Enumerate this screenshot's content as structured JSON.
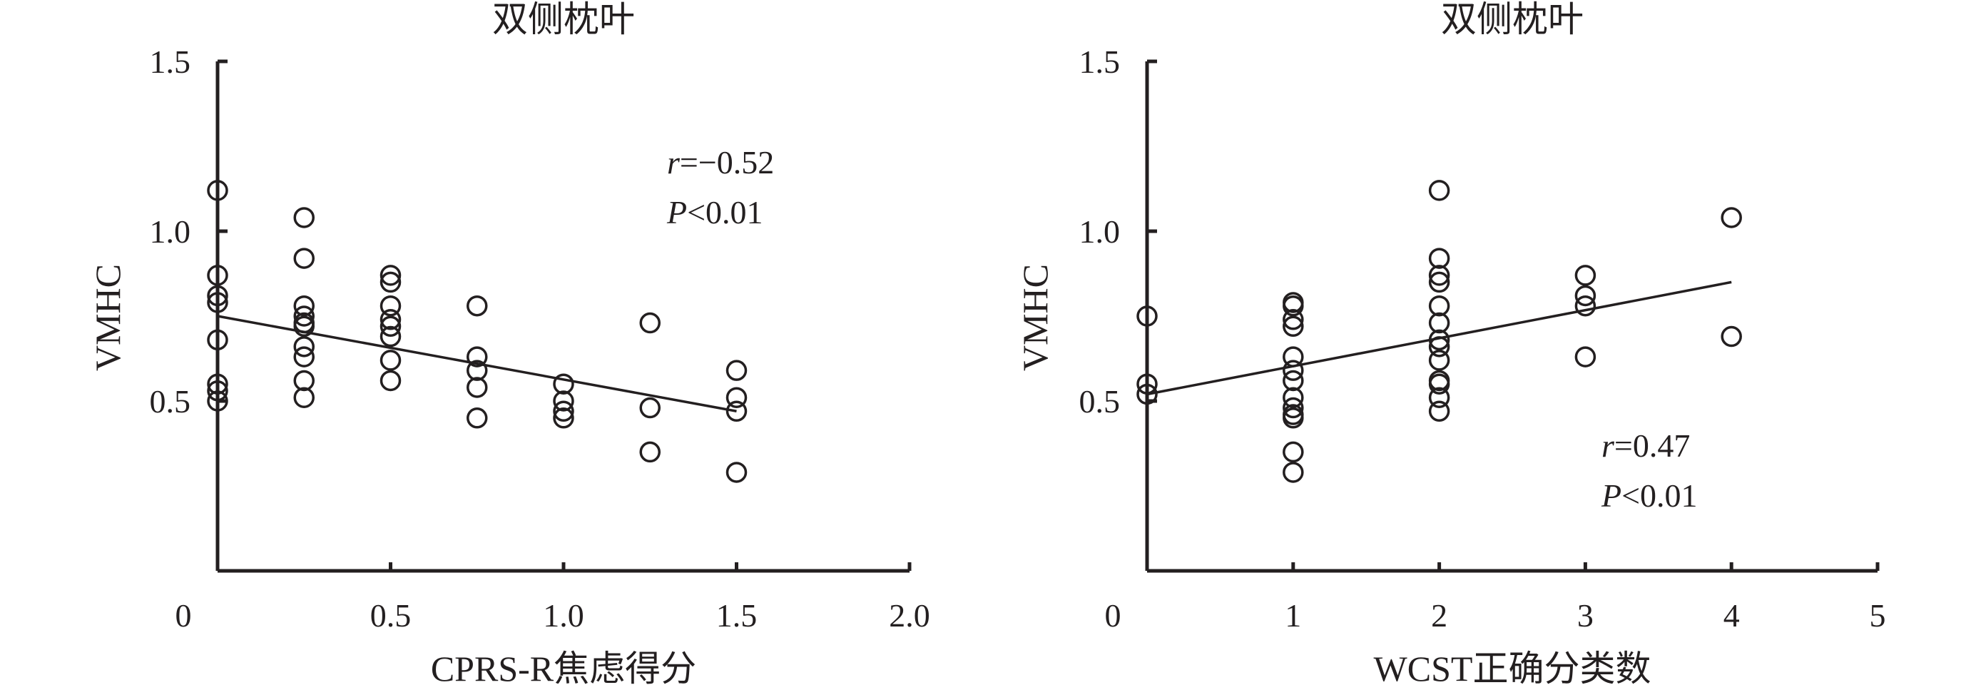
{
  "chart_data": [
    {
      "type": "scatter",
      "title": "双侧枕叶",
      "xlabel": "CPRS-R焦虑得分",
      "ylabel": "VMHC",
      "xlim": [
        0,
        2.0
      ],
      "ylim": [
        0,
        1.5
      ],
      "x_ticks": [
        "0",
        "0.5",
        "1.0",
        "1.5",
        "2.0"
      ],
      "y_ticks": [
        "0.5",
        "1.0",
        "1.5"
      ],
      "annotation": {
        "r_symbol": "r",
        "r_value": "=−0.52",
        "p_symbol": "P",
        "p_value": "<0.01"
      },
      "annotation_position": "top-right",
      "grid": false,
      "points": [
        {
          "x": 0.0,
          "y": 1.12
        },
        {
          "x": 0.0,
          "y": 0.87
        },
        {
          "x": 0.0,
          "y": 0.81
        },
        {
          "x": 0.0,
          "y": 0.79
        },
        {
          "x": 0.0,
          "y": 0.68
        },
        {
          "x": 0.0,
          "y": 0.55
        },
        {
          "x": 0.0,
          "y": 0.53
        },
        {
          "x": 0.0,
          "y": 0.5
        },
        {
          "x": 0.25,
          "y": 1.04
        },
        {
          "x": 0.25,
          "y": 0.92
        },
        {
          "x": 0.25,
          "y": 0.78
        },
        {
          "x": 0.25,
          "y": 0.75
        },
        {
          "x": 0.25,
          "y": 0.73
        },
        {
          "x": 0.25,
          "y": 0.72
        },
        {
          "x": 0.25,
          "y": 0.66
        },
        {
          "x": 0.25,
          "y": 0.63
        },
        {
          "x": 0.25,
          "y": 0.56
        },
        {
          "x": 0.25,
          "y": 0.51
        },
        {
          "x": 0.5,
          "y": 0.87
        },
        {
          "x": 0.5,
          "y": 0.85
        },
        {
          "x": 0.5,
          "y": 0.78
        },
        {
          "x": 0.5,
          "y": 0.74
        },
        {
          "x": 0.5,
          "y": 0.72
        },
        {
          "x": 0.5,
          "y": 0.69
        },
        {
          "x": 0.5,
          "y": 0.62
        },
        {
          "x": 0.5,
          "y": 0.56
        },
        {
          "x": 0.75,
          "y": 0.78
        },
        {
          "x": 0.75,
          "y": 0.63
        },
        {
          "x": 0.75,
          "y": 0.59
        },
        {
          "x": 0.75,
          "y": 0.54
        },
        {
          "x": 0.75,
          "y": 0.45
        },
        {
          "x": 1.0,
          "y": 0.55
        },
        {
          "x": 1.0,
          "y": 0.5
        },
        {
          "x": 1.0,
          "y": 0.47
        },
        {
          "x": 1.0,
          "y": 0.45
        },
        {
          "x": 1.25,
          "y": 0.73
        },
        {
          "x": 1.25,
          "y": 0.48
        },
        {
          "x": 1.25,
          "y": 0.35
        },
        {
          "x": 1.5,
          "y": 0.59
        },
        {
          "x": 1.5,
          "y": 0.51
        },
        {
          "x": 1.5,
          "y": 0.47
        },
        {
          "x": 1.5,
          "y": 0.29
        }
      ],
      "fit_line": {
        "x": [
          0.0,
          1.5
        ],
        "y": [
          0.75,
          0.47
        ]
      }
    },
    {
      "type": "scatter",
      "title": "双侧枕叶",
      "xlabel": "WCST正确分类数",
      "ylabel": "VMHC",
      "xlim": [
        0,
        5
      ],
      "ylim": [
        0,
        1.5
      ],
      "x_ticks": [
        "0",
        "1",
        "2",
        "3",
        "4",
        "5"
      ],
      "y_ticks": [
        "0.5",
        "1.0",
        "1.5"
      ],
      "annotation": {
        "r_symbol": "r",
        "r_value": "=0.47",
        "p_symbol": "P",
        "p_value": "<0.01"
      },
      "annotation_position": "bottom-right",
      "grid": false,
      "points": [
        {
          "x": 0.0,
          "y": 0.75
        },
        {
          "x": 0.0,
          "y": 0.55
        },
        {
          "x": 0.0,
          "y": 0.52
        },
        {
          "x": 1.0,
          "y": 0.79
        },
        {
          "x": 1.0,
          "y": 0.78
        },
        {
          "x": 1.0,
          "y": 0.74
        },
        {
          "x": 1.0,
          "y": 0.72
        },
        {
          "x": 1.0,
          "y": 0.63
        },
        {
          "x": 1.0,
          "y": 0.59
        },
        {
          "x": 1.0,
          "y": 0.56
        },
        {
          "x": 1.0,
          "y": 0.51
        },
        {
          "x": 1.0,
          "y": 0.48
        },
        {
          "x": 1.0,
          "y": 0.46
        },
        {
          "x": 1.0,
          "y": 0.45
        },
        {
          "x": 1.0,
          "y": 0.35
        },
        {
          "x": 1.0,
          "y": 0.29
        },
        {
          "x": 2.0,
          "y": 1.12
        },
        {
          "x": 2.0,
          "y": 0.92
        },
        {
          "x": 2.0,
          "y": 0.87
        },
        {
          "x": 2.0,
          "y": 0.85
        },
        {
          "x": 2.0,
          "y": 0.78
        },
        {
          "x": 2.0,
          "y": 0.73
        },
        {
          "x": 2.0,
          "y": 0.68
        },
        {
          "x": 2.0,
          "y": 0.66
        },
        {
          "x": 2.0,
          "y": 0.62
        },
        {
          "x": 2.0,
          "y": 0.56
        },
        {
          "x": 2.0,
          "y": 0.55
        },
        {
          "x": 2.0,
          "y": 0.51
        },
        {
          "x": 2.0,
          "y": 0.47
        },
        {
          "x": 3.0,
          "y": 0.87
        },
        {
          "x": 3.0,
          "y": 0.81
        },
        {
          "x": 3.0,
          "y": 0.78
        },
        {
          "x": 3.0,
          "y": 0.63
        },
        {
          "x": 4.0,
          "y": 1.04
        },
        {
          "x": 4.0,
          "y": 0.69
        }
      ],
      "fit_line": {
        "x": [
          0.0,
          4.0
        ],
        "y": [
          0.52,
          0.85
        ]
      }
    }
  ]
}
